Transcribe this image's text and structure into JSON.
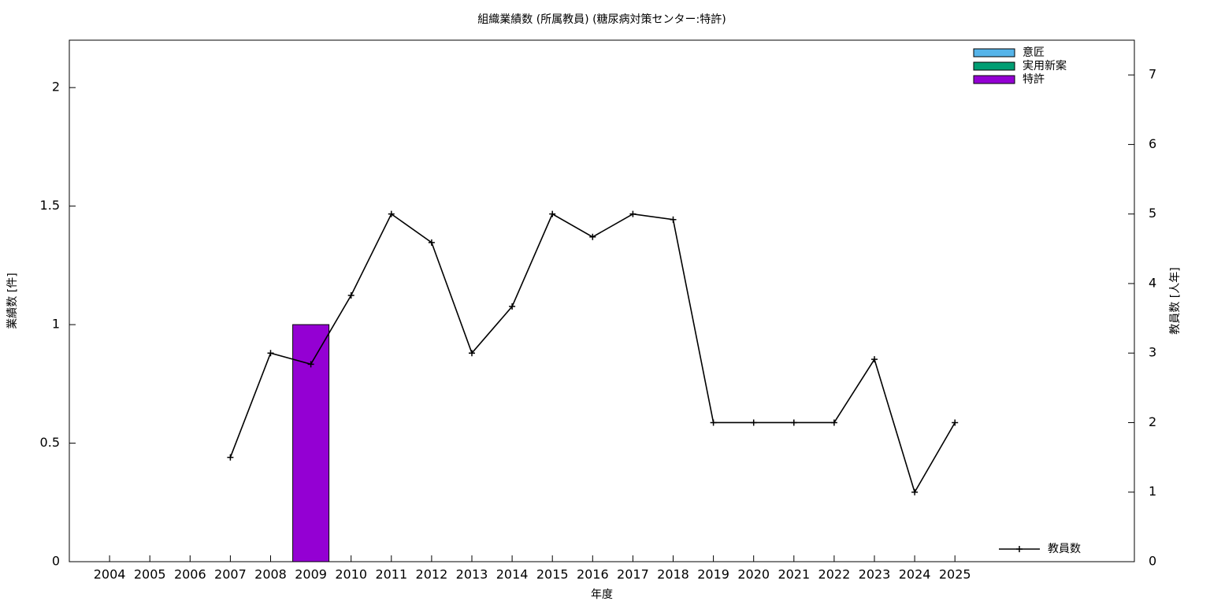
{
  "chart_data": {
    "type": "bar",
    "title": "組織業績数 (所属教員) (糖尿病対策センター:特許)",
    "xlabel": "年度",
    "ylabel": "業績数 [件]",
    "y2label": "教員数 [人年]",
    "categories": [
      "2004",
      "2005",
      "2006",
      "2007",
      "2008",
      "2009",
      "2010",
      "2011",
      "2012",
      "2013",
      "2014",
      "2015",
      "2016",
      "2017",
      "2018",
      "2019",
      "2020",
      "2021",
      "2022",
      "2023",
      "2024",
      "2025"
    ],
    "series": [
      {
        "name": "意匠",
        "color": "#56b4e9",
        "values": [
          0,
          0,
          0,
          0,
          0,
          0,
          0,
          0,
          0,
          0,
          0,
          0,
          0,
          0,
          0,
          0,
          0,
          0,
          0,
          0,
          0,
          0
        ]
      },
      {
        "name": "実用新案",
        "color": "#009e73",
        "values": [
          0,
          0,
          0,
          0,
          0,
          0,
          0,
          0,
          0,
          0,
          0,
          0,
          0,
          0,
          0,
          0,
          0,
          0,
          0,
          0,
          0,
          0
        ]
      },
      {
        "name": "特許",
        "color": "#9400d3",
        "values": [
          0,
          0,
          0,
          0,
          0,
          1,
          0,
          0,
          0,
          0,
          0,
          0,
          0,
          0,
          0,
          0,
          0,
          0,
          0,
          0,
          0,
          0
        ]
      },
      {
        "name": "教員数",
        "type": "line",
        "axis": "y2",
        "color": "#000000",
        "values": [
          null,
          null,
          null,
          1.5,
          3,
          2.84,
          3.83,
          5,
          4.59,
          3,
          3.67,
          5,
          4.67,
          5,
          4.92,
          2,
          2,
          2,
          2,
          2.91,
          1,
          2
        ]
      }
    ],
    "ylim": [
      0,
      2.2
    ],
    "yticks": [
      0,
      0.5,
      1,
      1.5,
      2
    ],
    "y2lim": [
      0,
      7.5
    ],
    "y2ticks": [
      0,
      1,
      2,
      3,
      4,
      5,
      6,
      7
    ],
    "legend": "top-right"
  }
}
